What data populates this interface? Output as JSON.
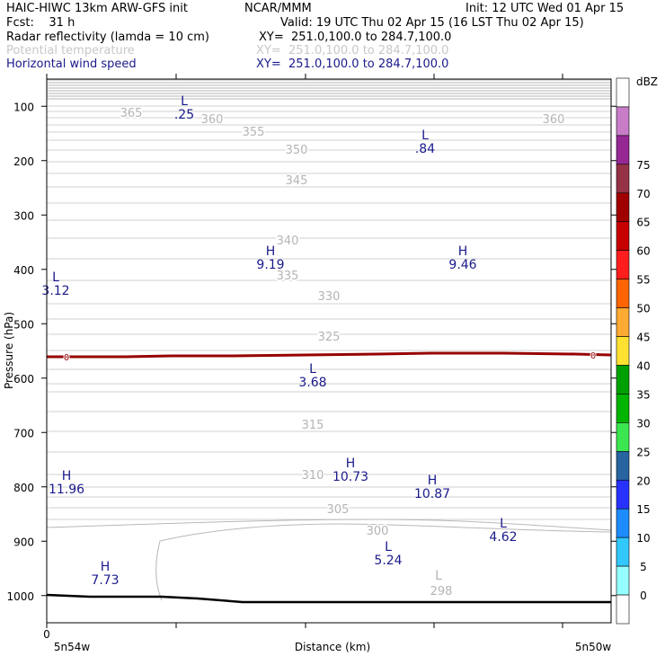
{
  "header": {
    "model": "HAIC-HIWC 13km ARW-GFS init",
    "org": "NCAR/MMM",
    "init": "Init: 12 UTC Wed 01 Apr 15",
    "fcst": "Fcst:    31 h",
    "valid": "Valid: 19 UTC Thu 02 Apr 15 (16 LST Thu 02 Apr 15)",
    "fields": [
      {
        "label": "Radar reflectivity (lamda = 10 cm)",
        "xy": "XY=  251.0,100.0 to 284.7,100.0",
        "color": "#000000"
      },
      {
        "label": "Potential temperature",
        "xy": "XY=  251.0,100.0 to 284.7,100.0",
        "color": "#c8c8c8"
      },
      {
        "label": "Horizontal wind speed",
        "xy": "XY=  251.0,100.0 to 284.7,100.0",
        "color": "#1a1a8c"
      }
    ]
  },
  "chart_data": {
    "type": "cross-section",
    "xlabel": "Distance (km)",
    "ylabel": "Pressure (hPa)",
    "x_ticks": [
      "0"
    ],
    "x_left_label": "5n54w",
    "x_right_label": "5n50w",
    "y_ticks": [
      100,
      200,
      300,
      400,
      500,
      600,
      700,
      800,
      900,
      1000
    ],
    "ylim": [
      50,
      1050
    ],
    "colorbar": {
      "unit": "dBZ",
      "levels": [
        0,
        5,
        10,
        15,
        20,
        25,
        30,
        35,
        40,
        45,
        50,
        55,
        60,
        65,
        70,
        75
      ],
      "colors": [
        "#ffffff",
        "#96ffff",
        "#32c8ff",
        "#1e8cff",
        "#2832ff",
        "#2864a0",
        "#3ce650",
        "#00b400",
        "#00a000",
        "#ffe132",
        "#ffaa32",
        "#ff6400",
        "#ff1e1e",
        "#c80000",
        "#a00000",
        "#963246",
        "#962896",
        "#c87dc8",
        "#ffffff"
      ]
    },
    "theta_contours": [
      {
        "value": 298,
        "label": "298"
      },
      {
        "value": 300,
        "label": "300"
      },
      {
        "value": 305,
        "label": "305"
      },
      {
        "value": 310,
        "label": "310"
      },
      {
        "value": 315,
        "label": "315"
      },
      {
        "value": 325,
        "label": "325"
      },
      {
        "value": 330,
        "label": "330"
      },
      {
        "value": 335,
        "label": "335"
      },
      {
        "value": 340,
        "label": "340"
      },
      {
        "value": 345,
        "label": "345"
      },
      {
        "value": 350,
        "label": "350"
      },
      {
        "value": 355,
        "label": "355"
      },
      {
        "value": 360,
        "label": "360"
      },
      {
        "value": 365,
        "label": "365"
      }
    ],
    "reflectivity_zero_label": "0",
    "wind_extrema": [
      {
        "type": "L",
        "value": ".25"
      },
      {
        "type": "L",
        "value": ".84"
      },
      {
        "type": "H",
        "value": "9.19"
      },
      {
        "type": "H",
        "value": "9.46"
      },
      {
        "type": "L",
        "value": "3.12"
      },
      {
        "type": "L",
        "value": "3.68"
      },
      {
        "type": "H",
        "value": "11.96"
      },
      {
        "type": "H",
        "value": "10.73"
      },
      {
        "type": "H",
        "value": "10.87"
      },
      {
        "type": "L",
        "value": "4.62"
      },
      {
        "type": "L",
        "value": "5.24"
      },
      {
        "type": "H",
        "value": "7.73"
      }
    ],
    "theta_extrema": [
      {
        "type": "L",
        "value": "298"
      }
    ]
  }
}
